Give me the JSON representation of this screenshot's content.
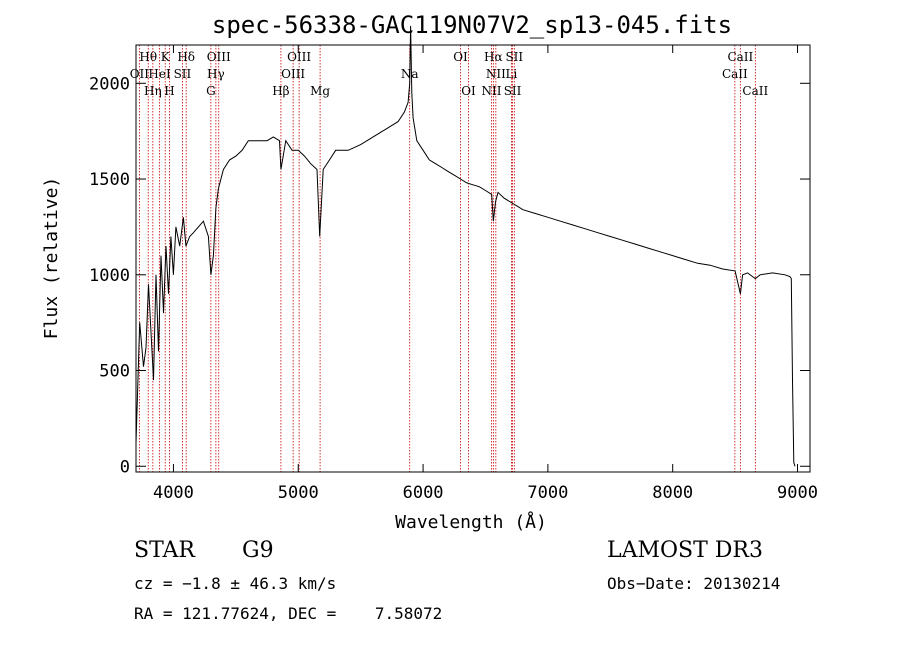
{
  "chart_data": {
    "type": "line",
    "title": "spec-56338-GAC119N07V2_sp13-045.fits",
    "xlabel": "Wavelength (Å)",
    "ylabel": "Flux (relative)",
    "xlim": [
      3700,
      9100
    ],
    "ylim": [
      -30,
      2200
    ],
    "xticks": [
      4000,
      5000,
      6000,
      7000,
      8000,
      9000
    ],
    "yticks": [
      0,
      500,
      1000,
      1500,
      2000
    ],
    "series": [
      {
        "name": "spectrum",
        "x": [
          3700,
          3730,
          3760,
          3780,
          3800,
          3820,
          3840,
          3860,
          3880,
          3900,
          3920,
          3940,
          3960,
          3980,
          4000,
          4020,
          4050,
          4080,
          4100,
          4130,
          4160,
          4200,
          4240,
          4280,
          4300,
          4320,
          4340,
          4360,
          4400,
          4450,
          4500,
          4550,
          4600,
          4650,
          4700,
          4750,
          4800,
          4850,
          4861,
          4900,
          4950,
          5000,
          5050,
          5100,
          5150,
          5172,
          5200,
          5250,
          5300,
          5400,
          5500,
          5600,
          5700,
          5800,
          5850,
          5880,
          5893,
          5900,
          5910,
          5920,
          5950,
          6000,
          6050,
          6100,
          6150,
          6200,
          6250,
          6300,
          6350,
          6400,
          6450,
          6500,
          6550,
          6563,
          6580,
          6600,
          6650,
          6700,
          6750,
          6800,
          6900,
          7000,
          7100,
          7200,
          7300,
          7400,
          7500,
          7600,
          7700,
          7800,
          7900,
          8000,
          8100,
          8200,
          8300,
          8400,
          8500,
          8542,
          8560,
          8600,
          8662,
          8700,
          8800,
          8900,
          8940,
          8950,
          8960,
          8970,
          8980
        ],
        "values": [
          120,
          750,
          520,
          620,
          950,
          700,
          450,
          1000,
          600,
          1100,
          800,
          1150,
          900,
          1200,
          1000,
          1250,
          1150,
          1300,
          1150,
          1200,
          1220,
          1250,
          1280,
          1200,
          1000,
          1100,
          1350,
          1450,
          1550,
          1600,
          1620,
          1650,
          1700,
          1700,
          1700,
          1700,
          1720,
          1700,
          1550,
          1700,
          1650,
          1650,
          1620,
          1580,
          1550,
          1200,
          1550,
          1600,
          1650,
          1650,
          1680,
          1720,
          1760,
          1800,
          1850,
          1900,
          2000,
          2300,
          1950,
          1820,
          1700,
          1650,
          1600,
          1580,
          1560,
          1540,
          1520,
          1500,
          1480,
          1470,
          1460,
          1440,
          1420,
          1280,
          1380,
          1430,
          1400,
          1380,
          1360,
          1340,
          1320,
          1300,
          1280,
          1260,
          1240,
          1220,
          1200,
          1180,
          1160,
          1140,
          1120,
          1100,
          1080,
          1060,
          1050,
          1030,
          1020,
          900,
          1000,
          1010,
          980,
          1000,
          1010,
          1000,
          990,
          980,
          450,
          20,
          0
        ]
      }
    ],
    "spectral_lines": [
      {
        "label": "Hθ",
        "wave": 3798,
        "row": 0
      },
      {
        "label": "K",
        "wave": 3934,
        "row": 0
      },
      {
        "label": "Hδ",
        "wave": 4102,
        "row": 0
      },
      {
        "label": "OIII",
        "wave": 4363,
        "row": 0
      },
      {
        "label": "OIII",
        "wave": 5007,
        "row": 0
      },
      {
        "label": "Na",
        "wave": 5893,
        "row": 1
      },
      {
        "label": "OI",
        "wave": 6300,
        "row": 0
      },
      {
        "label": "Hα",
        "wave": 6563,
        "row": 0
      },
      {
        "label": "SII",
        "wave": 6731,
        "row": 0
      },
      {
        "label": "CaII",
        "wave": 8542,
        "row": 0
      },
      {
        "label": "OII",
        "wave": 3727,
        "row": 1
      },
      {
        "label": "HeI",
        "wave": 3889,
        "row": 1
      },
      {
        "label": "SII",
        "wave": 4072,
        "row": 1
      },
      {
        "label": "Hγ",
        "wave": 4340,
        "row": 1
      },
      {
        "label": "OIII",
        "wave": 4959,
        "row": 1
      },
      {
        "label": "NII",
        "wave": 6583,
        "row": 1
      },
      {
        "label": "Li",
        "wave": 6708,
        "row": 1
      },
      {
        "label": "CaII",
        "wave": 8498,
        "row": 1
      },
      {
        "label": "Hη",
        "wave": 3835,
        "row": 2
      },
      {
        "label": "H",
        "wave": 3968,
        "row": 2
      },
      {
        "label": "G",
        "wave": 4300,
        "row": 2
      },
      {
        "label": "Hβ",
        "wave": 4861,
        "row": 2
      },
      {
        "label": "Mg",
        "wave": 5175,
        "row": 2
      },
      {
        "label": "OI",
        "wave": 6364,
        "row": 2
      },
      {
        "label": "NII",
        "wave": 6548,
        "row": 2
      },
      {
        "label": "SII",
        "wave": 6717,
        "row": 2
      },
      {
        "label": "CaII",
        "wave": 8662,
        "row": 2
      }
    ]
  },
  "info": {
    "object_class": "STAR",
    "subclass": "G9",
    "survey": "LAMOST DR3",
    "cz": "cz = −1.8 ± 46.3 km/s",
    "obs_date": "Obs−Date: 20130214",
    "coords": "RA = 121.77624, DEC =    7.58072"
  },
  "colors": {
    "spectrum": "#000000",
    "line_marker": "#cc0000",
    "axis": "#000000"
  }
}
